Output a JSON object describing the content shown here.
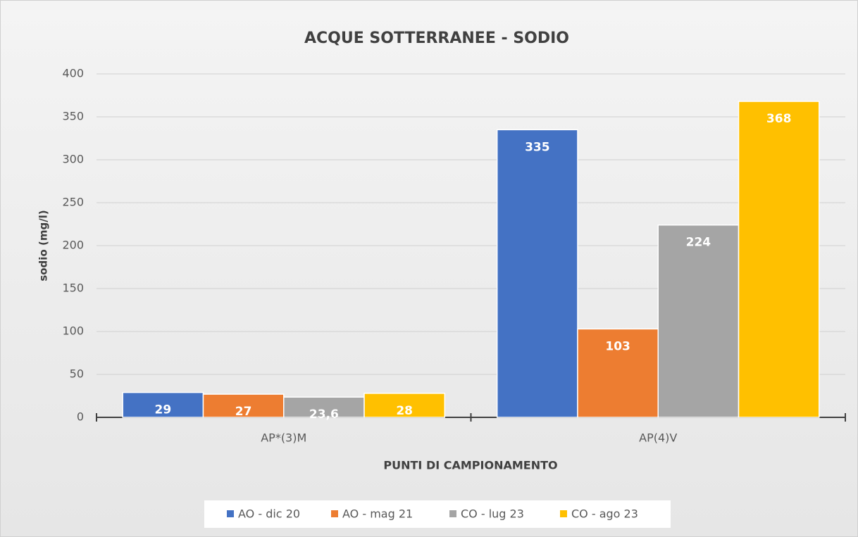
{
  "chart_data": {
    "type": "bar",
    "title": "ACQUE SOTTERRANEE - SODIO",
    "y_label": "sodio (mg/l)",
    "x_label": "PUNTI DI CAMPIONAMENTO",
    "categories": [
      "AP*(3)M",
      "AP(4)V"
    ],
    "series": [
      {
        "name": "AO - dic 20",
        "color": "#4472c4",
        "values": [
          29,
          335
        ]
      },
      {
        "name": "AO - mag 21",
        "color": "#ed7d31",
        "values": [
          27,
          103
        ]
      },
      {
        "name": "CO - lug 23",
        "color": "#a5a5a5",
        "values": [
          23.6,
          224
        ],
        "value_labels": [
          "23,6",
          "224"
        ]
      },
      {
        "name": "CO - ago 23",
        "color": "#ffc000",
        "values": [
          28,
          368
        ]
      }
    ],
    "ylim": [
      0,
      400
    ],
    "yticks": [
      0,
      50,
      100,
      150,
      200,
      250,
      300,
      350,
      400
    ],
    "grid": true,
    "legend": "bottom"
  }
}
